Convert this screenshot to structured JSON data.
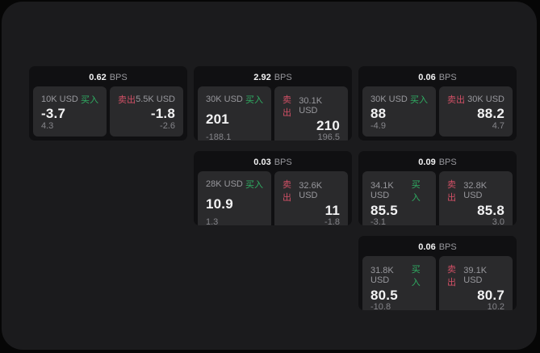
{
  "colors": {
    "background": "#060606",
    "surface": "#1b1b1d",
    "card": "#101012",
    "pane": "#2a2a2c",
    "buy_green": "#2fae63",
    "sell_red": "#d25066",
    "value_white": "#f2f2f3",
    "label_gray": "#98989d",
    "sub_gray": "#85858a"
  },
  "labels": {
    "buy": "买入",
    "sell": "卖出",
    "bps": "BPS"
  },
  "cards": [
    {
      "bps": "0.62",
      "buy": {
        "size": "10K USD",
        "price": "-3.7",
        "delta": "4.3"
      },
      "sell": {
        "size": "5.5K USD",
        "price": "-1.8",
        "delta": "-2.6"
      }
    },
    {
      "bps": "2.92",
      "buy": {
        "size": "30K USD",
        "price": "201",
        "delta": "-188.1"
      },
      "sell": {
        "size": "30.1K USD",
        "price": "210",
        "delta": "196.5"
      }
    },
    {
      "bps": "0.06",
      "buy": {
        "size": "30K USD",
        "price": "88",
        "delta": "-4.9"
      },
      "sell": {
        "size": "30K USD",
        "price": "88.2",
        "delta": "4.7"
      }
    },
    {
      "bps": "0.03",
      "buy": {
        "size": "28K USD",
        "price": "10.9",
        "delta": "1.3"
      },
      "sell": {
        "size": "32.6K USD",
        "price": "11",
        "delta": "-1.8"
      }
    },
    {
      "bps": "0.09",
      "buy": {
        "size": "34.1K USD",
        "price": "85.5",
        "delta": "-3.1"
      },
      "sell": {
        "size": "32.8K USD",
        "price": "85.8",
        "delta": "3.0"
      }
    },
    {
      "bps": "0.06",
      "buy": {
        "size": "31.8K USD",
        "price": "80.5",
        "delta": "-10.8"
      },
      "sell": {
        "size": "39.1K USD",
        "price": "80.7",
        "delta": "10.2"
      }
    }
  ]
}
